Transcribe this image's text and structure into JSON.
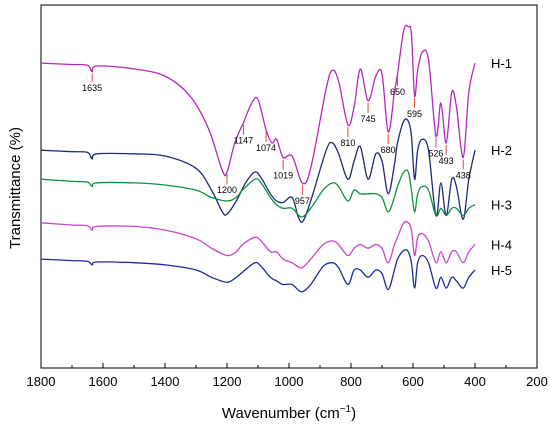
{
  "chart_data": {
    "type": "line",
    "xlabel": "Wavenumber",
    "xlabel_unit_base": "cm",
    "xlabel_unit_exp": "−1",
    "ylabel": "Transmittance (%)",
    "xlim": [
      1800,
      200
    ],
    "x_ticks": [
      1800,
      1600,
      1400,
      1200,
      1000,
      800,
      600,
      400,
      200
    ],
    "y_ticks_shown": false,
    "grid": false,
    "legend": "none",
    "series": [
      {
        "name": "H-1",
        "color": "#b428c0",
        "offset": 420,
        "annotation_color": "#e04040",
        "points": [
          [
            1800,
            0
          ],
          [
            1700,
            -2
          ],
          [
            1650,
            -3
          ],
          [
            1635,
            -12
          ],
          [
            1620,
            -4
          ],
          [
            1500,
            -8
          ],
          [
            1400,
            -18
          ],
          [
            1320,
            -45
          ],
          [
            1260,
            -90
          ],
          [
            1215,
            -148
          ],
          [
            1200,
            -150
          ],
          [
            1175,
            -110
          ],
          [
            1147,
            -82
          ],
          [
            1120,
            -55
          ],
          [
            1100,
            -50
          ],
          [
            1074,
            -92
          ],
          [
            1055,
            -110
          ],
          [
            1040,
            -105
          ],
          [
            1019,
            -130
          ],
          [
            990,
            -128
          ],
          [
            957,
            -165
          ],
          [
            930,
            -145
          ],
          [
            880,
            -35
          ],
          [
            860,
            -10
          ],
          [
            840,
            -25
          ],
          [
            810,
            -85
          ],
          [
            790,
            -60
          ],
          [
            770,
            -8
          ],
          [
            745,
            -52
          ],
          [
            720,
            -18
          ],
          [
            700,
            -15
          ],
          [
            680,
            -95
          ],
          [
            660,
            -40
          ],
          [
            650,
            -15
          ],
          [
            630,
            45
          ],
          [
            615,
            50
          ],
          [
            605,
            40
          ],
          [
            595,
            -45
          ],
          [
            585,
            -10
          ],
          [
            570,
            15
          ],
          [
            550,
            5
          ],
          [
            526,
            -100
          ],
          [
            510,
            -55
          ],
          [
            493,
            -110
          ],
          [
            475,
            -40
          ],
          [
            460,
            -60
          ],
          [
            438,
            -130
          ],
          [
            420,
            -40
          ],
          [
            400,
            0
          ]
        ],
        "labels": [
          {
            "wn": 1635,
            "text": "1635"
          },
          {
            "wn": 1200,
            "text": "1200"
          },
          {
            "wn": 1147,
            "text": "1147"
          },
          {
            "wn": 1074,
            "text": "1074"
          },
          {
            "wn": 1019,
            "text": "1019"
          },
          {
            "wn": 957,
            "text": "957"
          },
          {
            "wn": 810,
            "text": "810"
          },
          {
            "wn": 745,
            "text": "745"
          },
          {
            "wn": 680,
            "text": "680"
          },
          {
            "wn": 650,
            "text": "650"
          },
          {
            "wn": 595,
            "text": "595"
          },
          {
            "wn": 526,
            "text": "526"
          },
          {
            "wn": 493,
            "text": "493"
          },
          {
            "wn": 438,
            "text": "438"
          }
        ]
      },
      {
        "name": "H-2",
        "color": "#1e2a78",
        "offset": 300,
        "points": [
          [
            1800,
            0
          ],
          [
            1700,
            -2
          ],
          [
            1650,
            -3
          ],
          [
            1635,
            -12
          ],
          [
            1620,
            -5
          ],
          [
            1500,
            -5
          ],
          [
            1400,
            -8
          ],
          [
            1300,
            -25
          ],
          [
            1250,
            -55
          ],
          [
            1215,
            -85
          ],
          [
            1200,
            -88
          ],
          [
            1170,
            -70
          ],
          [
            1140,
            -45
          ],
          [
            1110,
            -30
          ],
          [
            1090,
            -38
          ],
          [
            1060,
            -60
          ],
          [
            1040,
            -70
          ],
          [
            1019,
            -72
          ],
          [
            990,
            -65
          ],
          [
            970,
            -92
          ],
          [
            955,
            -98
          ],
          [
            930,
            -70
          ],
          [
            880,
            0
          ],
          [
            860,
            10
          ],
          [
            840,
            -5
          ],
          [
            810,
            -40
          ],
          [
            790,
            -15
          ],
          [
            770,
            5
          ],
          [
            745,
            -40
          ],
          [
            720,
            -5
          ],
          [
            700,
            -15
          ],
          [
            680,
            -60
          ],
          [
            660,
            -20
          ],
          [
            650,
            10
          ],
          [
            630,
            40
          ],
          [
            615,
            40
          ],
          [
            605,
            20
          ],
          [
            595,
            -40
          ],
          [
            585,
            0
          ],
          [
            570,
            15
          ],
          [
            550,
            0
          ],
          [
            526,
            -90
          ],
          [
            510,
            -45
          ],
          [
            493,
            -90
          ],
          [
            475,
            -40
          ],
          [
            460,
            -50
          ],
          [
            438,
            -95
          ],
          [
            420,
            -40
          ],
          [
            400,
            0
          ]
        ]
      },
      {
        "name": "H-3",
        "color": "#109040",
        "offset": 260,
        "points": [
          [
            1800,
            0
          ],
          [
            1700,
            -3
          ],
          [
            1650,
            -4
          ],
          [
            1635,
            -10
          ],
          [
            1620,
            -5
          ],
          [
            1500,
            -5
          ],
          [
            1400,
            -8
          ],
          [
            1300,
            -15
          ],
          [
            1250,
            -25
          ],
          [
            1200,
            -30
          ],
          [
            1170,
            -25
          ],
          [
            1150,
            -15
          ],
          [
            1110,
            0
          ],
          [
            1090,
            -5
          ],
          [
            1060,
            -25
          ],
          [
            1040,
            -35
          ],
          [
            1019,
            -40
          ],
          [
            990,
            -40
          ],
          [
            960,
            -52
          ],
          [
            930,
            -40
          ],
          [
            890,
            -15
          ],
          [
            860,
            -5
          ],
          [
            840,
            -10
          ],
          [
            810,
            -30
          ],
          [
            790,
            -15
          ],
          [
            770,
            -20
          ],
          [
            745,
            -20
          ],
          [
            720,
            -20
          ],
          [
            700,
            -25
          ],
          [
            680,
            -45
          ],
          [
            660,
            -25
          ],
          [
            650,
            -10
          ],
          [
            630,
            10
          ],
          [
            615,
            10
          ],
          [
            605,
            -15
          ],
          [
            595,
            -45
          ],
          [
            585,
            -20
          ],
          [
            570,
            -10
          ],
          [
            550,
            -15
          ],
          [
            526,
            -50
          ],
          [
            510,
            -40
          ],
          [
            493,
            -50
          ],
          [
            475,
            -40
          ],
          [
            460,
            -40
          ],
          [
            438,
            -50
          ],
          [
            420,
            -40
          ],
          [
            400,
            -35
          ]
        ]
      },
      {
        "name": "H-4",
        "color": "#cc44cc",
        "offset": 200,
        "points": [
          [
            1800,
            0
          ],
          [
            1700,
            -3
          ],
          [
            1650,
            -4
          ],
          [
            1635,
            -10
          ],
          [
            1620,
            -5
          ],
          [
            1500,
            -5
          ],
          [
            1400,
            -10
          ],
          [
            1300,
            -22
          ],
          [
            1250,
            -35
          ],
          [
            1200,
            -45
          ],
          [
            1170,
            -40
          ],
          [
            1150,
            -30
          ],
          [
            1110,
            -20
          ],
          [
            1090,
            -25
          ],
          [
            1060,
            -40
          ],
          [
            1040,
            -40
          ],
          [
            1019,
            -50
          ],
          [
            990,
            -55
          ],
          [
            960,
            -62
          ],
          [
            930,
            -50
          ],
          [
            890,
            -30
          ],
          [
            860,
            -25
          ],
          [
            840,
            -30
          ],
          [
            810,
            -45
          ],
          [
            790,
            -35
          ],
          [
            770,
            -30
          ],
          [
            745,
            -35
          ],
          [
            720,
            -30
          ],
          [
            700,
            -35
          ],
          [
            680,
            -55
          ],
          [
            660,
            -30
          ],
          [
            650,
            -20
          ],
          [
            630,
            0
          ],
          [
            615,
            0
          ],
          [
            605,
            -10
          ],
          [
            595,
            -45
          ],
          [
            585,
            -20
          ],
          [
            570,
            -15
          ],
          [
            550,
            -25
          ],
          [
            526,
            -55
          ],
          [
            510,
            -40
          ],
          [
            493,
            -55
          ],
          [
            475,
            -40
          ],
          [
            460,
            -40
          ],
          [
            438,
            -55
          ],
          [
            420,
            -40
          ],
          [
            400,
            -30
          ]
        ]
      },
      {
        "name": "H-5",
        "color": "#1c2aa0",
        "offset": 150,
        "points": [
          [
            1800,
            0
          ],
          [
            1700,
            -2
          ],
          [
            1650,
            -3
          ],
          [
            1635,
            -8
          ],
          [
            1620,
            -4
          ],
          [
            1500,
            -5
          ],
          [
            1400,
            -8
          ],
          [
            1300,
            -15
          ],
          [
            1250,
            -25
          ],
          [
            1200,
            -32
          ],
          [
            1170,
            -25
          ],
          [
            1150,
            -18
          ],
          [
            1110,
            -5
          ],
          [
            1090,
            -10
          ],
          [
            1060,
            -25
          ],
          [
            1040,
            -30
          ],
          [
            1019,
            -35
          ],
          [
            990,
            -35
          ],
          [
            960,
            -45
          ],
          [
            930,
            -35
          ],
          [
            890,
            -10
          ],
          [
            860,
            -5
          ],
          [
            840,
            -12
          ],
          [
            810,
            -35
          ],
          [
            790,
            -15
          ],
          [
            770,
            -15
          ],
          [
            745,
            -25
          ],
          [
            720,
            -15
          ],
          [
            700,
            -20
          ],
          [
            680,
            -42
          ],
          [
            660,
            -15
          ],
          [
            650,
            0
          ],
          [
            630,
            12
          ],
          [
            615,
            10
          ],
          [
            605,
            -5
          ],
          [
            595,
            -40
          ],
          [
            585,
            -5
          ],
          [
            570,
            5
          ],
          [
            550,
            -5
          ],
          [
            526,
            -40
          ],
          [
            510,
            -25
          ],
          [
            493,
            -40
          ],
          [
            475,
            -25
          ],
          [
            460,
            -30
          ],
          [
            438,
            -40
          ],
          [
            420,
            -25
          ],
          [
            400,
            -15
          ]
        ]
      }
    ]
  }
}
